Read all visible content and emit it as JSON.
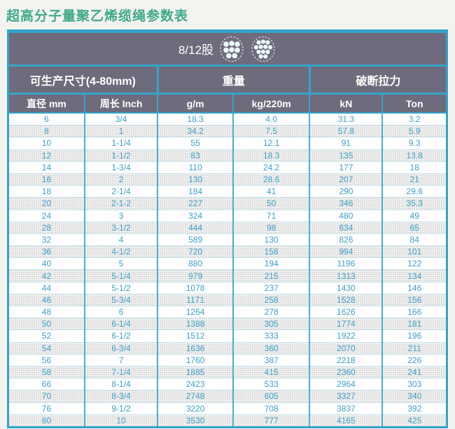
{
  "page": {
    "title": "超高分子量聚乙烯缆绳参数表"
  },
  "banner": {
    "label": "8/12股",
    "icons": [
      "rope-8-strand-icon",
      "rope-12-strand-icon"
    ]
  },
  "table": {
    "groups": [
      {
        "label": "可生产尺寸(4-80mm)",
        "span": 2
      },
      {
        "label": "重量",
        "span": 2
      },
      {
        "label": "破断拉力",
        "span": 2
      }
    ],
    "columns": [
      "直径 mm",
      "周长 Inch",
      "g/m",
      "kg/220m",
      "kN",
      "Ton"
    ],
    "rows": [
      [
        "6",
        "3/4",
        "18.3",
        "4.0",
        "31.3",
        "3.2"
      ],
      [
        "8",
        "1",
        "34.2",
        "7.5",
        "57.8",
        "5.9"
      ],
      [
        "10",
        "1-1/4",
        "55",
        "12.1",
        "91",
        "9.3"
      ],
      [
        "12",
        "1-1/2",
        "83",
        "18.3",
        "135",
        "13.8"
      ],
      [
        "14",
        "1-3/4",
        "110",
        "24.2",
        "177",
        "18"
      ],
      [
        "16",
        "2",
        "130",
        "28.6",
        "207",
        "21"
      ],
      [
        "18",
        "2-1/4",
        "184",
        "41",
        "290",
        "29.6"
      ],
      [
        "20",
        "2-1-2",
        "227",
        "50",
        "346",
        "35.3"
      ],
      [
        "24",
        "3",
        "324",
        "71",
        "480",
        "49"
      ],
      [
        "28",
        "3-1/2",
        "444",
        "98",
        "634",
        "65"
      ],
      [
        "32",
        "4",
        "589",
        "130",
        "826",
        "84"
      ],
      [
        "36",
        "4-1/2",
        "720",
        "158",
        "994",
        "101"
      ],
      [
        "40",
        "5",
        "880",
        "194",
        "1196",
        "122"
      ],
      [
        "42",
        "5-1/4",
        "979",
        "215",
        "1313",
        "134"
      ],
      [
        "44",
        "5-1/2",
        "1078",
        "237",
        "1430",
        "146"
      ],
      [
        "46",
        "5-3/4",
        "1171",
        "258",
        "1528",
        "156"
      ],
      [
        "48",
        "6",
        "1264",
        "278",
        "1626",
        "166"
      ],
      [
        "50",
        "6-1/4",
        "1388",
        "305",
        "1774",
        "181"
      ],
      [
        "52",
        "6-1/2",
        "1512",
        "333",
        "1922",
        "196"
      ],
      [
        "54",
        "6-3/4",
        "1636",
        "360",
        "2070",
        "211"
      ],
      [
        "56",
        "7",
        "1760",
        "387",
        "2218",
        "226"
      ],
      [
        "58",
        "7-1/4",
        "1885",
        "415",
        "2360",
        "241"
      ],
      [
        "66",
        "8-1/4",
        "2423",
        "533",
        "2964",
        "303"
      ],
      [
        "70",
        "8-3/4",
        "2748",
        "605",
        "3327",
        "340"
      ],
      [
        "76",
        "9-1/2",
        "3220",
        "708",
        "3837",
        "392"
      ],
      [
        "80",
        "10",
        "3530",
        "777",
        "4165",
        "425"
      ]
    ]
  },
  "colors": {
    "title_green": "#3fa98b",
    "border_cyan": "#35a4c9",
    "header_gray": "#6e6c7c",
    "data_text_blue": "#3f9fc6",
    "alt_row_gray": "#dedede",
    "page_background": "#f4f3f0"
  }
}
